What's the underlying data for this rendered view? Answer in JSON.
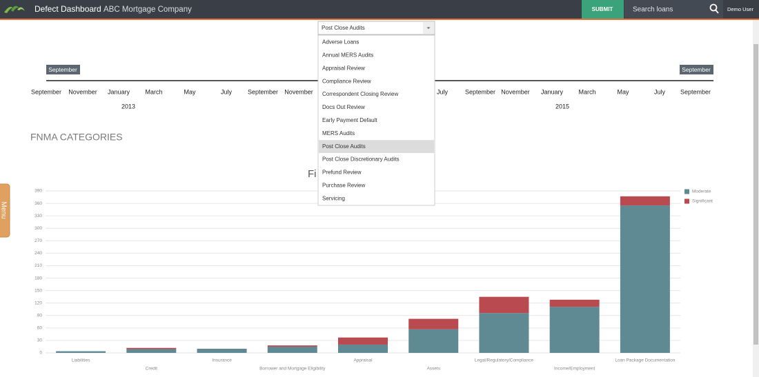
{
  "header": {
    "app_name": "Defect Dashboard",
    "company": "ABC Mortgage Company",
    "submit": "SUBMIT",
    "search_placeholder": "Search loans",
    "user": "Demo User"
  },
  "menu_tab": "Menu",
  "dropdown": {
    "selected": "Post Close Audits",
    "options": [
      "Adverse Loans",
      "Annual MERS Audits",
      "Appraisal Review",
      "Compliance Review",
      "Correspondent Closing Review",
      "Docs Out Review",
      "Early Payment Default",
      "MERS Audits",
      "Post Close Audits",
      "Post Close Discretionary Audits",
      "Prefund Review",
      "Purchase Review",
      "Servicing"
    ],
    "highlighted": 8
  },
  "timeline": {
    "handle_left": "September",
    "handle_right": "September",
    "months": [
      "September",
      "November",
      "January",
      "March",
      "May",
      "July",
      "September",
      "November",
      "July",
      "September",
      "November",
      "January",
      "March",
      "May",
      "July",
      "September"
    ],
    "years": [
      "2013",
      "2015"
    ]
  },
  "section_title": "FNMA CATEGORIES",
  "chart_data": {
    "type": "bar",
    "stacked": true,
    "title": "Fi",
    "categories": [
      "Liabilities",
      "Credit",
      "Insurance",
      "Borrower and Mortgage Eligibility",
      "Appraisal",
      "Assets",
      "Legal/Regulatory/Compliance",
      "Income/Employment",
      "Loan Package Documentation"
    ],
    "series": [
      {
        "name": "Moderate",
        "color": "#5f8a94",
        "values": [
          4,
          9,
          10,
          15,
          20,
          57,
          96,
          111,
          355
        ]
      },
      {
        "name": "Significant",
        "color": "#b94a50",
        "values": [
          0,
          3,
          0,
          3,
          17,
          25,
          39,
          17,
          22
        ]
      }
    ],
    "ylim": [
      0,
      390
    ],
    "yticks": [
      0,
      30,
      60,
      90,
      120,
      150,
      180,
      210,
      240,
      270,
      300,
      330,
      360,
      390
    ],
    "grid": true,
    "legend": "upper right"
  }
}
